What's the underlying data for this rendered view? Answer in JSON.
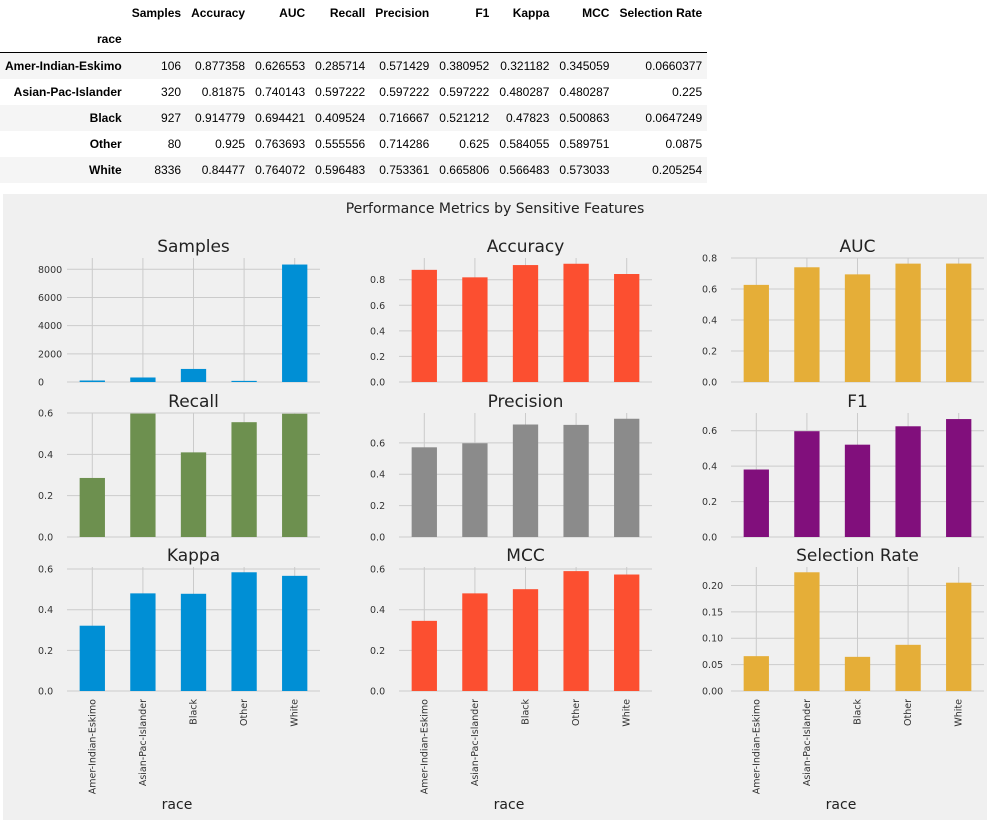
{
  "table": {
    "index_name": "race",
    "columns": [
      "Samples",
      "Accuracy",
      "AUC",
      "Recall",
      "Precision",
      "F1",
      "Kappa",
      "MCC",
      "Selection Rate"
    ],
    "rows": [
      {
        "label": "Amer-Indian-Eskimo",
        "cells": [
          "106",
          "0.877358",
          "0.626553",
          "0.285714",
          "0.571429",
          "0.380952",
          "0.321182",
          "0.345059",
          "0.0660377"
        ]
      },
      {
        "label": "Asian-Pac-Islander",
        "cells": [
          "320",
          "0.81875",
          "0.740143",
          "0.597222",
          "0.597222",
          "0.597222",
          "0.480287",
          "0.480287",
          "0.225"
        ]
      },
      {
        "label": "Black",
        "cells": [
          "927",
          "0.914779",
          "0.694421",
          "0.409524",
          "0.716667",
          "0.521212",
          "0.47823",
          "0.500863",
          "0.0647249"
        ]
      },
      {
        "label": "Other",
        "cells": [
          "80",
          "0.925",
          "0.763693",
          "0.555556",
          "0.714286",
          "0.625",
          "0.584055",
          "0.589751",
          "0.0875"
        ]
      },
      {
        "label": "White",
        "cells": [
          "8336",
          "0.84477",
          "0.764072",
          "0.596483",
          "0.753361",
          "0.665806",
          "0.566483",
          "0.573033",
          "0.205254"
        ]
      }
    ]
  },
  "figure": {
    "suptitle": "Performance Metrics by Sensitive Features",
    "xlabel": "race",
    "background": "#f0f0f0",
    "grid_color": "#cbcbcb"
  },
  "chart_data": [
    {
      "type": "bar",
      "title": "Samples",
      "categories": [
        "Amer-Indian-Eskimo",
        "Asian-Pac-Islander",
        "Black",
        "Other",
        "White"
      ],
      "values": [
        106,
        320,
        927,
        80,
        8336
      ],
      "ylim": [
        0,
        8800
      ],
      "yticks": [
        0,
        2000,
        4000,
        6000,
        8000
      ],
      "ytick_labels": [
        "0",
        "2000",
        "4000",
        "6000",
        "8000"
      ],
      "color": "#008fd5",
      "grid": true
    },
    {
      "type": "bar",
      "title": "Accuracy",
      "categories": [
        "Amer-Indian-Eskimo",
        "Asian-Pac-Islander",
        "Black",
        "Other",
        "White"
      ],
      "values": [
        0.877358,
        0.81875,
        0.914779,
        0.925,
        0.84477
      ],
      "ylim": [
        0,
        0.97
      ],
      "yticks": [
        0,
        0.2,
        0.4,
        0.6,
        0.8
      ],
      "ytick_labels": [
        "0.0",
        "0.2",
        "0.4",
        "0.6",
        "0.8"
      ],
      "color": "#fc4f30",
      "grid": true
    },
    {
      "type": "bar",
      "title": "AUC",
      "categories": [
        "Amer-Indian-Eskimo",
        "Asian-Pac-Islander",
        "Black",
        "Other",
        "White"
      ],
      "values": [
        0.626553,
        0.740143,
        0.694421,
        0.763693,
        0.764072
      ],
      "ylim": [
        0,
        0.8
      ],
      "yticks": [
        0,
        0.2,
        0.4,
        0.6,
        0.8
      ],
      "ytick_labels": [
        "0.0",
        "0.2",
        "0.4",
        "0.6",
        "0.8"
      ],
      "color": "#e5ae38",
      "grid": true
    },
    {
      "type": "bar",
      "title": "Recall",
      "categories": [
        "Amer-Indian-Eskimo",
        "Asian-Pac-Islander",
        "Black",
        "Other",
        "White"
      ],
      "values": [
        0.285714,
        0.597222,
        0.409524,
        0.555556,
        0.596483
      ],
      "ylim": [
        0,
        0.6
      ],
      "yticks": [
        0,
        0.2,
        0.4,
        0.6
      ],
      "ytick_labels": [
        "0.0",
        "0.2",
        "0.4",
        "0.6"
      ],
      "color": "#6d904f",
      "grid": true
    },
    {
      "type": "bar",
      "title": "Precision",
      "categories": [
        "Amer-Indian-Eskimo",
        "Asian-Pac-Islander",
        "Black",
        "Other",
        "White"
      ],
      "values": [
        0.571429,
        0.597222,
        0.716667,
        0.714286,
        0.753361
      ],
      "ylim": [
        0,
        0.79
      ],
      "yticks": [
        0,
        0.2,
        0.4,
        0.6
      ],
      "ytick_labels": [
        "0.0",
        "0.2",
        "0.4",
        "0.6"
      ],
      "color": "#8b8b8b",
      "grid": true
    },
    {
      "type": "bar",
      "title": "F1",
      "categories": [
        "Amer-Indian-Eskimo",
        "Asian-Pac-Islander",
        "Black",
        "Other",
        "White"
      ],
      "values": [
        0.380952,
        0.597222,
        0.521212,
        0.625,
        0.665806
      ],
      "ylim": [
        0,
        0.7
      ],
      "yticks": [
        0,
        0.2,
        0.4,
        0.6
      ],
      "ytick_labels": [
        "0.0",
        "0.2",
        "0.4",
        "0.6"
      ],
      "color": "#810f7c",
      "grid": true
    },
    {
      "type": "bar",
      "title": "Kappa",
      "categories": [
        "Amer-Indian-Eskimo",
        "Asian-Pac-Islander",
        "Black",
        "Other",
        "White"
      ],
      "values": [
        0.321182,
        0.480287,
        0.47823,
        0.584055,
        0.566483
      ],
      "ylim": [
        0,
        0.61
      ],
      "yticks": [
        0,
        0.2,
        0.4,
        0.6
      ],
      "ytick_labels": [
        "0.0",
        "0.2",
        "0.4",
        "0.6"
      ],
      "color": "#008fd5",
      "grid": true
    },
    {
      "type": "bar",
      "title": "MCC",
      "categories": [
        "Amer-Indian-Eskimo",
        "Asian-Pac-Islander",
        "Black",
        "Other",
        "White"
      ],
      "values": [
        0.345059,
        0.480287,
        0.500863,
        0.589751,
        0.573033
      ],
      "ylim": [
        0,
        0.61
      ],
      "yticks": [
        0,
        0.2,
        0.4,
        0.6
      ],
      "ytick_labels": [
        "0.0",
        "0.2",
        "0.4",
        "0.6"
      ],
      "color": "#fc4f30",
      "grid": true
    },
    {
      "type": "bar",
      "title": "Selection Rate",
      "categories": [
        "Amer-Indian-Eskimo",
        "Asian-Pac-Islander",
        "Black",
        "Other",
        "White"
      ],
      "values": [
        0.0660377,
        0.225,
        0.0647249,
        0.0875,
        0.205254
      ],
      "ylim": [
        0,
        0.235
      ],
      "yticks": [
        0,
        0.05,
        0.1,
        0.15,
        0.2
      ],
      "ytick_labels": [
        "0.00",
        "0.05",
        "0.10",
        "0.15",
        "0.20"
      ],
      "color": "#e5ae38",
      "grid": true
    }
  ]
}
